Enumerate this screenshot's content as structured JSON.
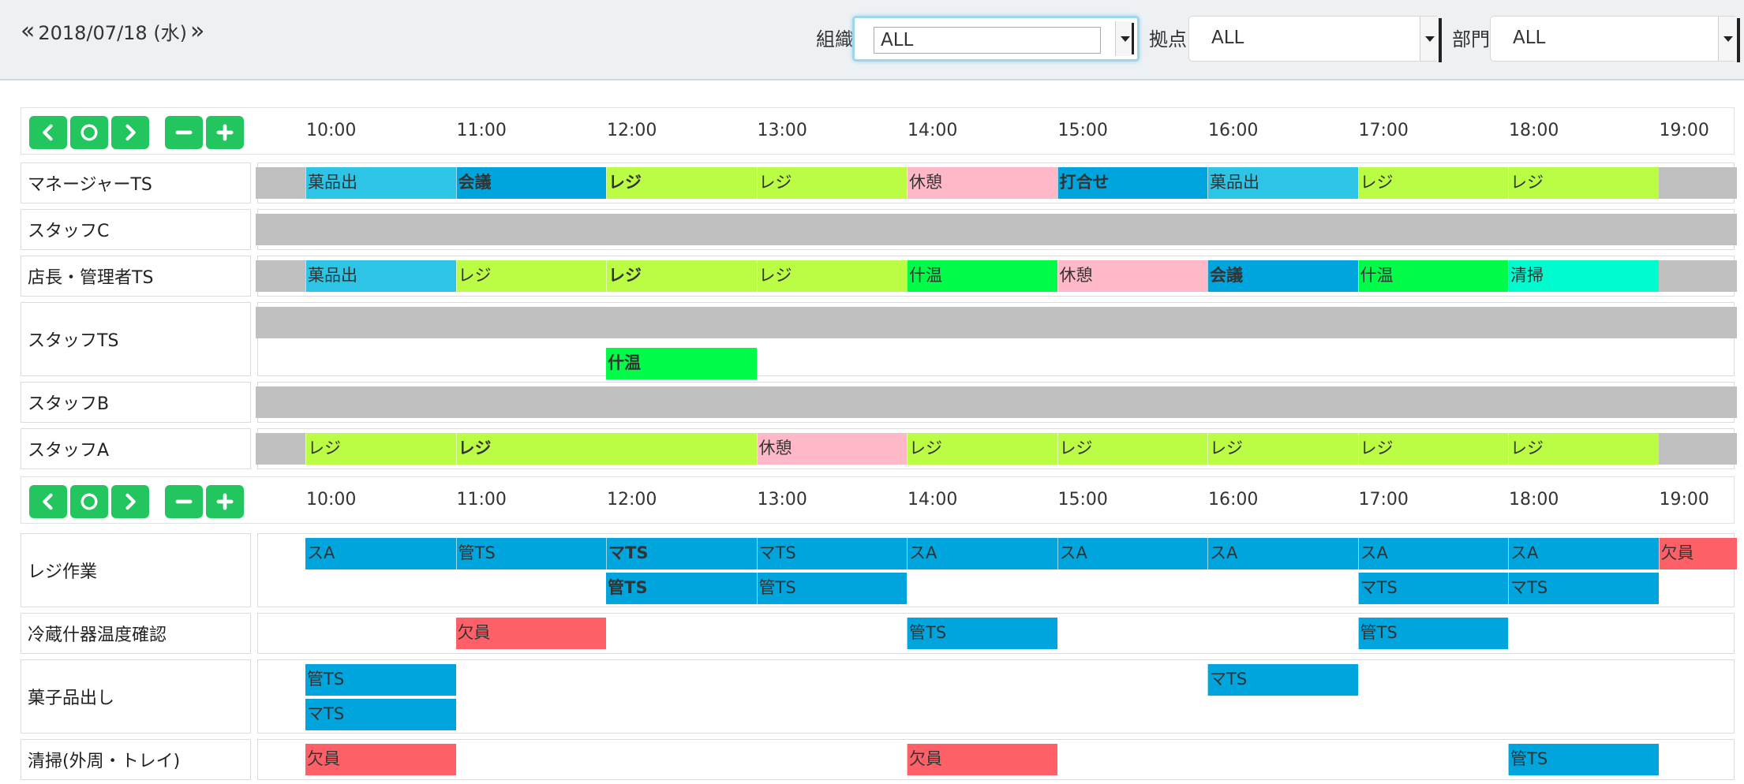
{
  "header": {
    "date": "2018/07/18 (水)",
    "prev_glyph": "«",
    "next_glyph": "»",
    "filters": [
      {
        "label": "組織",
        "value": "ALL"
      },
      {
        "label": "拠点",
        "value": "ALL"
      },
      {
        "label": "部門",
        "value": "ALL"
      }
    ]
  },
  "hours": [
    "10:00",
    "11:00",
    "12:00",
    "13:00",
    "14:00",
    "15:00",
    "16:00",
    "17:00",
    "18:00",
    "19:00"
  ],
  "staff": [
    {
      "name": "マネージャーTS",
      "lanes": [
        [
          {
            "s": 9.67,
            "e": 10,
            "c": "gray",
            "t": ""
          },
          {
            "s": 10,
            "e": 11,
            "c": "sky",
            "t": "菓品出"
          },
          {
            "s": 11,
            "e": 12,
            "c": "blue",
            "t": "会議",
            "b": true
          },
          {
            "s": 12,
            "e": 13,
            "c": "lime",
            "t": "レジ",
            "b": true
          },
          {
            "s": 13,
            "e": 14,
            "c": "lime",
            "t": "レジ"
          },
          {
            "s": 14,
            "e": 15,
            "c": "pink",
            "t": "休憩"
          },
          {
            "s": 15,
            "e": 16,
            "c": "blue",
            "t": "打合せ",
            "b": true
          },
          {
            "s": 16,
            "e": 17,
            "c": "sky",
            "t": "菓品出"
          },
          {
            "s": 17,
            "e": 18,
            "c": "lime",
            "t": "レジ"
          },
          {
            "s": 18,
            "e": 19,
            "c": "lime",
            "t": "レジ"
          },
          {
            "s": 19,
            "e": 19.52,
            "c": "gray",
            "t": ""
          }
        ]
      ]
    },
    {
      "name": "スタッフC",
      "lanes": [
        [
          {
            "s": 9.67,
            "e": 19.52,
            "c": "gray",
            "t": ""
          }
        ]
      ]
    },
    {
      "name": "店長・管理者TS",
      "lanes": [
        [
          {
            "s": 9.67,
            "e": 10,
            "c": "gray",
            "t": ""
          },
          {
            "s": 10,
            "e": 11,
            "c": "sky",
            "t": "菓品出"
          },
          {
            "s": 11,
            "e": 12,
            "c": "lime",
            "t": "レジ"
          },
          {
            "s": 12,
            "e": 13,
            "c": "lime",
            "t": "レジ",
            "b": true
          },
          {
            "s": 13,
            "e": 14,
            "c": "lime",
            "t": "レジ"
          },
          {
            "s": 14,
            "e": 15,
            "c": "green",
            "t": "什温"
          },
          {
            "s": 15,
            "e": 16,
            "c": "pink",
            "t": "休憩"
          },
          {
            "s": 16,
            "e": 17,
            "c": "blue",
            "t": "会議",
            "b": true
          },
          {
            "s": 17,
            "e": 18,
            "c": "green",
            "t": "什温"
          },
          {
            "s": 18,
            "e": 19,
            "c": "aqua",
            "t": "清掃"
          },
          {
            "s": 19,
            "e": 19.52,
            "c": "gray",
            "t": ""
          }
        ]
      ]
    },
    {
      "name": "スタッフTS",
      "lanes": [
        [
          {
            "s": 9.67,
            "e": 19.52,
            "c": "gray",
            "t": ""
          }
        ],
        [
          {
            "s": 12,
            "e": 13,
            "c": "green",
            "t": "什温",
            "b": true
          }
        ]
      ]
    },
    {
      "name": "スタッフB",
      "lanes": [
        [
          {
            "s": 9.67,
            "e": 19.52,
            "c": "gray",
            "t": ""
          }
        ]
      ]
    },
    {
      "name": "スタッフA",
      "lanes": [
        [
          {
            "s": 9.67,
            "e": 10,
            "c": "gray",
            "t": ""
          },
          {
            "s": 10,
            "e": 11,
            "c": "lime",
            "t": "レジ"
          },
          {
            "s": 11,
            "e": 13,
            "c": "lime",
            "t": "レジ",
            "b": true
          },
          {
            "s": 13,
            "e": 14,
            "c": "pink",
            "t": "休憩"
          },
          {
            "s": 14,
            "e": 15,
            "c": "lime",
            "t": "レジ"
          },
          {
            "s": 15,
            "e": 16,
            "c": "lime",
            "t": "レジ"
          },
          {
            "s": 16,
            "e": 17,
            "c": "lime",
            "t": "レジ"
          },
          {
            "s": 17,
            "e": 18,
            "c": "lime",
            "t": "レジ"
          },
          {
            "s": 18,
            "e": 19,
            "c": "lime",
            "t": "レジ"
          },
          {
            "s": 19,
            "e": 19.52,
            "c": "gray",
            "t": ""
          }
        ]
      ]
    }
  ],
  "tasks": [
    {
      "name": "レジ作業",
      "lanes": [
        [
          {
            "s": 10,
            "e": 11,
            "c": "blue",
            "t": "スA"
          },
          {
            "s": 11,
            "e": 12,
            "c": "blue",
            "t": "管TS"
          },
          {
            "s": 12,
            "e": 13,
            "c": "blue",
            "t": "マTS",
            "b": true
          },
          {
            "s": 13,
            "e": 14,
            "c": "blue",
            "t": "マTS"
          },
          {
            "s": 14,
            "e": 15,
            "c": "blue",
            "t": "スA"
          },
          {
            "s": 15,
            "e": 16,
            "c": "blue",
            "t": "スA"
          },
          {
            "s": 16,
            "e": 17,
            "c": "blue",
            "t": "スA"
          },
          {
            "s": 17,
            "e": 18,
            "c": "blue",
            "t": "スA"
          },
          {
            "s": 18,
            "e": 19,
            "c": "blue",
            "t": "スA"
          },
          {
            "s": 19,
            "e": 19.52,
            "c": "red",
            "t": "欠員"
          }
        ],
        [
          {
            "s": 12,
            "e": 13,
            "c": "blue",
            "t": "管TS",
            "b": true
          },
          {
            "s": 13,
            "e": 14,
            "c": "blue",
            "t": "管TS"
          },
          {
            "s": 17,
            "e": 18,
            "c": "blue",
            "t": "マTS"
          },
          {
            "s": 18,
            "e": 19,
            "c": "blue",
            "t": "マTS"
          }
        ]
      ]
    },
    {
      "name": "冷蔵什器温度確認",
      "lanes": [
        [
          {
            "s": 11,
            "e": 12,
            "c": "red",
            "t": "欠員"
          },
          {
            "s": 14,
            "e": 15,
            "c": "blue",
            "t": "管TS"
          },
          {
            "s": 17,
            "e": 18,
            "c": "blue",
            "t": "管TS"
          }
        ]
      ]
    },
    {
      "name": "菓子品出し",
      "lanes": [
        [
          {
            "s": 10,
            "e": 11,
            "c": "blue",
            "t": "管TS"
          },
          {
            "s": 16,
            "e": 17,
            "c": "blue",
            "t": "マTS"
          }
        ],
        [
          {
            "s": 10,
            "e": 11,
            "c": "blue",
            "t": "マTS"
          }
        ]
      ]
    },
    {
      "name": "清掃(外周・トレイ)",
      "lanes": [
        [
          {
            "s": 10,
            "e": 11,
            "c": "red",
            "t": "欠員"
          },
          {
            "s": 14,
            "e": 15,
            "c": "red",
            "t": "欠員"
          },
          {
            "s": 18,
            "e": 19,
            "c": "blue",
            "t": "管TS"
          }
        ]
      ]
    }
  ],
  "colors": {
    "gray": "#c0c0c0",
    "sky": "#2ec4e6",
    "blue": "#00a5dd",
    "lime": "#bbfc45",
    "pink": "#ffb8c8",
    "green": "#00fb48",
    "aqua": "#00fbcf",
    "red": "#fe6068",
    "button": "#22c55e"
  }
}
